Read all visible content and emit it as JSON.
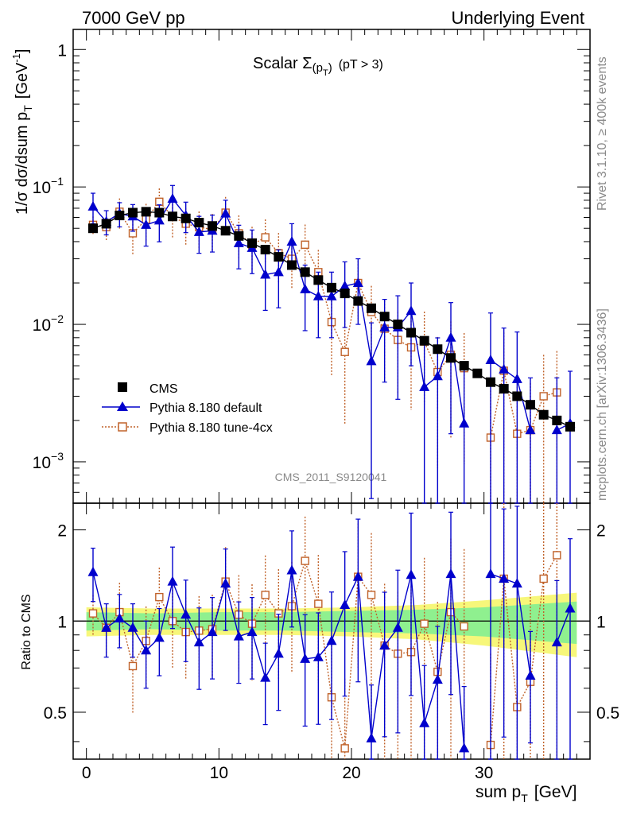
{
  "header": {
    "left": "7000 GeV pp",
    "right": "Underlying Event"
  },
  "side": {
    "rivet": "Rivet 3.1.10, ≥ 400k events",
    "mcplots": "mcplots.cern.ch [arXiv:1306.3436]"
  },
  "colors": {
    "cms": "#000000",
    "default": "#0000cc",
    "tune": "#c0622a",
    "band_inner": "#8ff08f",
    "band_outer": "#f7f77a"
  },
  "chart_data": {
    "type": "line",
    "title_main": "Scalar Σ",
    "title_sub": "(p",
    "title_sub2": "T",
    "title_close": ")",
    "title_cut": "(pT >  3)",
    "analysis_label": "CMS_2011_S9120041",
    "xlabel": "sum p",
    "xlabel_sub": "T",
    "xlabel_unit": "[GeV]",
    "ylabel": "1/σ dσ/dsum p",
    "ylabel_sub": "T",
    "ylabel_unit": "[GeV",
    "ylabel_exp": "-1",
    "ylabel_close": "]",
    "ratio_ylabel": "Ratio to CMS",
    "xlim": [
      -1,
      38
    ],
    "ylim_main": [
      0.0005,
      1.4
    ],
    "ylog": true,
    "ylim_ratio": [
      0.35,
      2.45
    ],
    "x_ticks": [
      "0",
      "10",
      "20",
      "30"
    ],
    "y_ticks_main": [
      {
        "v": 1,
        "base": "1",
        "exp": ""
      },
      {
        "v": 0.1,
        "base": "10",
        "exp": "−1"
      },
      {
        "v": 0.01,
        "base": "10",
        "exp": "−2"
      },
      {
        "v": 0.001,
        "base": "10",
        "exp": "−3"
      }
    ],
    "y_ticks_ratio": [
      "0.5",
      "1",
      "2"
    ],
    "legend_position": "lower-left",
    "x": [
      0.5,
      1.5,
      2.5,
      3.5,
      4.5,
      5.5,
      6.5,
      7.5,
      8.5,
      9.5,
      10.5,
      11.5,
      12.5,
      13.5,
      14.5,
      15.5,
      16.5,
      17.5,
      18.5,
      19.5,
      20.5,
      21.5,
      22.5,
      23.5,
      24.5,
      25.5,
      26.5,
      27.5,
      28.5,
      29.5,
      30.5,
      31.5,
      32.5,
      33.5,
      34.5,
      35.5,
      36.5
    ],
    "series": [
      {
        "name": "CMS",
        "key": "cms",
        "values": [
          0.05,
          0.054,
          0.062,
          0.065,
          0.066,
          0.065,
          0.061,
          0.059,
          0.055,
          0.052,
          0.048,
          0.044,
          0.039,
          0.035,
          0.031,
          0.027,
          0.024,
          0.021,
          0.0185,
          0.0168,
          0.0148,
          0.0131,
          0.0114,
          0.01,
          0.0087,
          0.0076,
          0.0066,
          0.0057,
          0.005,
          0.0044,
          0.0038,
          0.0034,
          0.003,
          0.0026,
          0.0022,
          0.002,
          0.0018
        ]
      },
      {
        "name": "Pythia 8.180 default",
        "key": "default",
        "values": [
          0.072,
          0.056,
          0.064,
          0.061,
          0.053,
          0.057,
          0.082,
          0.062,
          0.047,
          0.048,
          0.064,
          0.039,
          0.036,
          0.023,
          0.024,
          0.04,
          0.018,
          0.016,
          0.016,
          0.019,
          0.02,
          0.0054,
          0.0095,
          0.0095,
          0.0125,
          0.0035,
          0.0042,
          0.008,
          0.0019,
          null,
          0.0055,
          0.0047,
          0.004,
          0.0017,
          null,
          0.0017,
          0.0019
        ],
        "errors": [
          0.25,
          0.2,
          0.2,
          0.22,
          0.3,
          0.3,
          0.25,
          0.25,
          0.3,
          0.3,
          0.25,
          0.35,
          0.35,
          0.45,
          0.45,
          0.35,
          0.5,
          0.5,
          0.5,
          0.5,
          0.5,
          0.9,
          0.6,
          0.7,
          0.6,
          1.2,
          0.9,
          0.8,
          1.5,
          0,
          1.2,
          1.0,
          1.2,
          1.4,
          0,
          1.4,
          1.4
        ]
      },
      {
        "name": "Pythia 8.180 tune-4cx",
        "key": "tune",
        "values": [
          0.053,
          0.051,
          0.066,
          0.046,
          0.058,
          0.078,
          0.061,
          0.054,
          0.051,
          0.049,
          0.065,
          0.046,
          0.038,
          0.043,
          0.033,
          0.03,
          0.038,
          0.024,
          0.0104,
          0.0063,
          0.02,
          0.0123,
          0.0093,
          0.0077,
          0.0068,
          0.0075,
          0.0045,
          0.006,
          0.0048,
          null,
          0.0015,
          0.0046,
          0.0016,
          0.0017,
          0.003,
          0.0032,
          null
        ],
        "errors": [
          0.15,
          0.2,
          0.25,
          0.3,
          0.3,
          0.25,
          0.3,
          0.3,
          0.3,
          0.3,
          0.3,
          0.35,
          0.35,
          0.35,
          0.4,
          0.4,
          0.4,
          0.45,
          0.6,
          0.7,
          0.45,
          0.55,
          0.6,
          0.6,
          0.65,
          0.65,
          0.8,
          0.75,
          0.8,
          0,
          1.2,
          0.9,
          1.2,
          1.2,
          1.0,
          1.0,
          0
        ]
      }
    ],
    "ratio_series": [
      {
        "key": "default",
        "values": [
          1.45,
          0.95,
          1.02,
          0.95,
          0.8,
          0.88,
          1.35,
          1.05,
          0.85,
          0.92,
          1.33,
          0.89,
          0.92,
          0.65,
          0.78,
          1.47,
          0.75,
          0.76,
          0.86,
          1.13,
          1.4,
          0.41,
          0.83,
          0.95,
          1.42,
          0.46,
          0.64,
          1.43,
          0.38,
          null,
          1.43,
          1.38,
          1.33,
          0.66,
          null,
          0.85,
          1.1
        ],
        "errors": [
          0.2,
          0.2,
          0.2,
          0.2,
          0.25,
          0.25,
          0.3,
          0.3,
          0.3,
          0.3,
          0.3,
          0.3,
          0.3,
          0.3,
          0.35,
          0.35,
          0.4,
          0.4,
          0.45,
          0.5,
          0.55,
          0.5,
          0.5,
          0.55,
          0.6,
          0.55,
          0.5,
          0.6,
          0.6,
          0,
          0.8,
          0.7,
          0.8,
          0.4,
          0,
          0.6,
          0.7
        ]
      },
      {
        "key": "tune",
        "values": [
          1.06,
          0.95,
          1.07,
          0.71,
          0.86,
          1.2,
          1.0,
          0.92,
          0.93,
          0.94,
          1.35,
          1.05,
          0.98,
          1.22,
          1.06,
          1.12,
          1.58,
          1.14,
          0.56,
          0.38,
          1.4,
          1.22,
          0.83,
          0.78,
          0.79,
          0.98,
          0.68,
          1.07,
          0.96,
          null,
          0.39,
          1.38,
          0.52,
          0.63,
          1.38,
          1.65,
          null
        ],
        "errors": [
          0.15,
          0.2,
          0.25,
          0.3,
          0.3,
          0.25,
          0.3,
          0.3,
          0.3,
          0.3,
          0.3,
          0.35,
          0.35,
          0.35,
          0.4,
          0.4,
          0.4,
          0.45,
          0.6,
          0.7,
          0.5,
          0.6,
          0.6,
          0.6,
          0.65,
          0.65,
          0.7,
          0.75,
          0.8,
          0,
          1.0,
          0.9,
          1.0,
          1.0,
          0.9,
          1.0,
          0
        ]
      }
    ],
    "ratio_band": {
      "x": [
        0,
        5,
        10,
        15,
        20,
        25,
        30,
        37
      ],
      "inner": [
        0.07,
        0.06,
        0.07,
        0.07,
        0.08,
        0.09,
        0.11,
        0.16
      ],
      "outer": [
        0.11,
        0.1,
        0.1,
        0.1,
        0.11,
        0.13,
        0.17,
        0.24
      ]
    }
  }
}
